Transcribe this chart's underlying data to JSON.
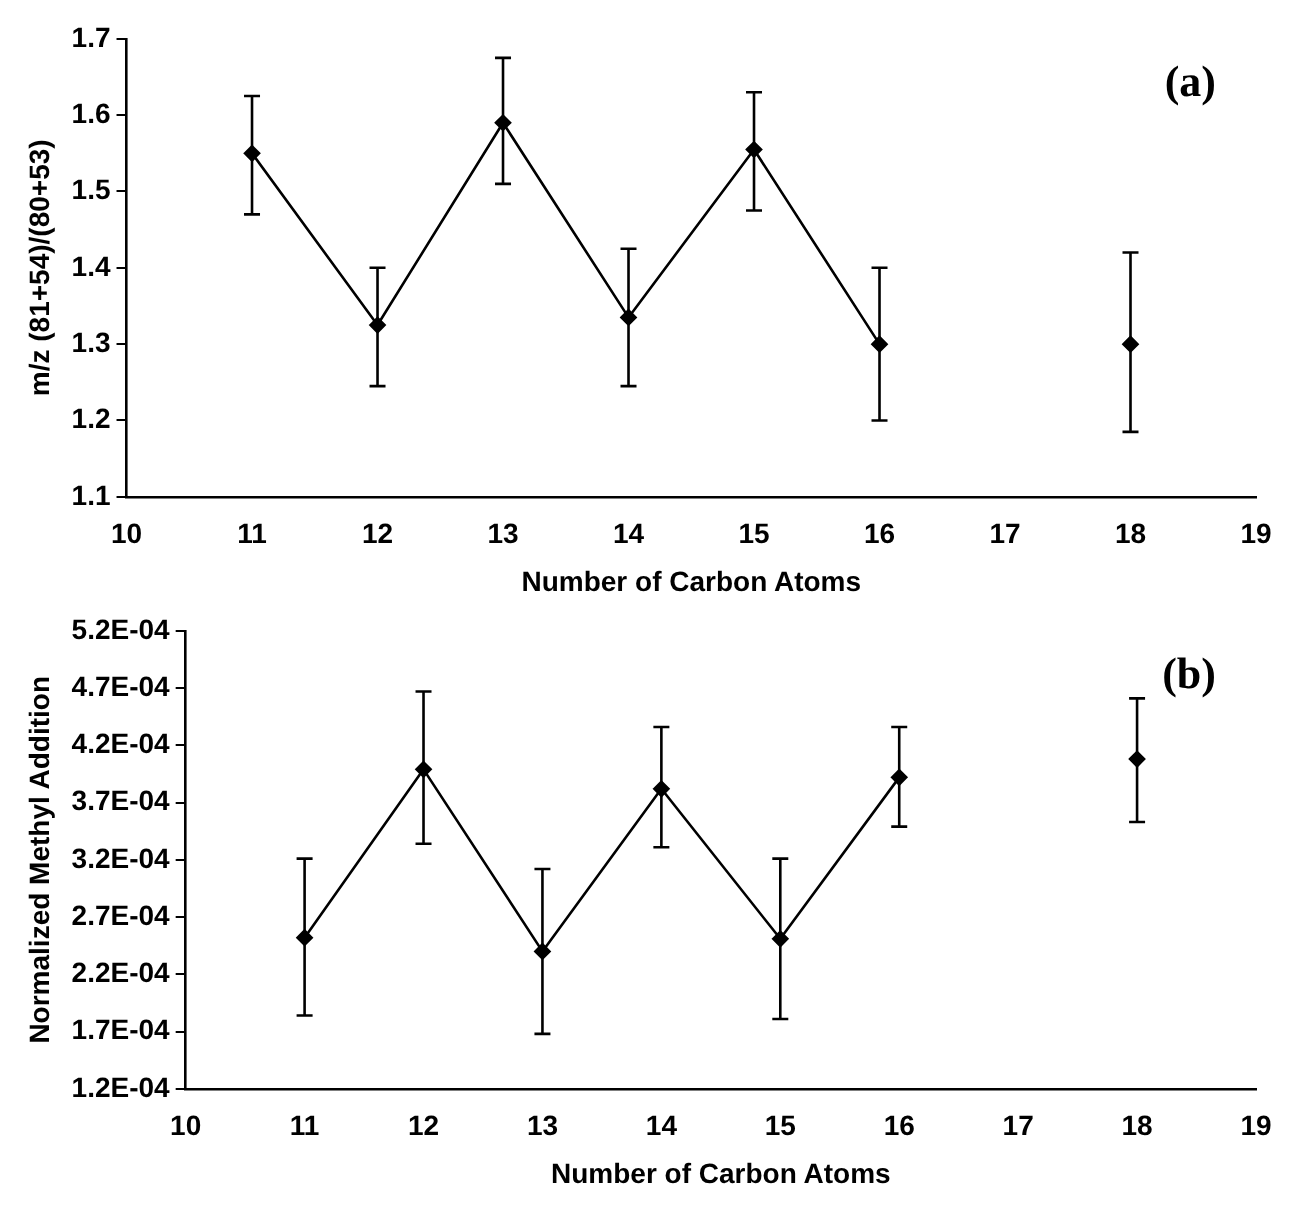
{
  "chart_data": [
    {
      "type": "line",
      "xlabel": "Number of Carbon Atoms",
      "ylabel": "m/z (81+54)/(80+53)",
      "annotations": [
        "(a)"
      ],
      "x": [
        11,
        12,
        13,
        14,
        15,
        16,
        17,
        18
      ],
      "xlim": [
        10,
        19
      ],
      "xticks": [
        10,
        11,
        12,
        13,
        14,
        15,
        16,
        17,
        18,
        19
      ],
      "ylim": [
        1.1,
        1.7
      ],
      "yticks": [
        1.1,
        1.2,
        1.3,
        1.4,
        1.5,
        1.6,
        1.7
      ],
      "grid": false,
      "legend": false,
      "marker": "diamond",
      "line_style": "solid",
      "series": [
        {
          "color": "#000000",
          "values": [
            1.55,
            1.325,
            1.59,
            1.335,
            1.555,
            1.3,
            null,
            1.3
          ],
          "errors": [
            [
              1.47,
              1.625
            ],
            [
              1.245,
              1.4
            ],
            [
              1.51,
              1.675
            ],
            [
              1.245,
              1.425
            ],
            [
              1.475,
              1.63
            ],
            [
              1.2,
              1.4
            ],
            null,
            [
              1.185,
              1.42
            ]
          ]
        }
      ]
    },
    {
      "type": "line",
      "xlabel": "Number of Carbon Atoms",
      "ylabel": "Normalized Methyl Addition",
      "annotations": [
        "(b)"
      ],
      "x": [
        11,
        12,
        13,
        14,
        15,
        16,
        17,
        18
      ],
      "xlim": [
        10,
        19
      ],
      "xticks": [
        10,
        11,
        12,
        13,
        14,
        15,
        16,
        17,
        18,
        19
      ],
      "ylim": [
        0.00012,
        0.00052
      ],
      "yticks": [
        {
          "value": 0.00012,
          "label": "1.2E-04"
        },
        {
          "value": 0.00017,
          "label": "1.7E-04"
        },
        {
          "value": 0.00022,
          "label": "2.2E-04"
        },
        {
          "value": 0.00027,
          "label": "2.7E-04"
        },
        {
          "value": 0.00032,
          "label": "3.2E-04"
        },
        {
          "value": 0.00037,
          "label": "3.7E-04"
        },
        {
          "value": 0.00042,
          "label": "4.2E-04"
        },
        {
          "value": 0.00047,
          "label": "4.7E-04"
        },
        {
          "value": 0.00052,
          "label": "5.2E-04"
        }
      ],
      "grid": false,
      "legend": false,
      "marker": "diamond",
      "line_style": "solid",
      "series": [
        {
          "color": "#000000",
          "values": [
            0.000252,
            0.000399,
            0.00024,
            0.000382,
            0.000251,
            0.000392,
            null,
            0.000408
          ],
          "errors": [
            [
              0.000184,
              0.000321
            ],
            [
              0.000334,
              0.000467
            ],
            [
              0.000168,
              0.000312
            ],
            [
              0.000331,
              0.000436
            ],
            [
              0.000181,
              0.000321
            ],
            [
              0.000349,
              0.000436
            ],
            null,
            [
              0.000353,
              0.000461
            ]
          ]
        }
      ]
    }
  ]
}
